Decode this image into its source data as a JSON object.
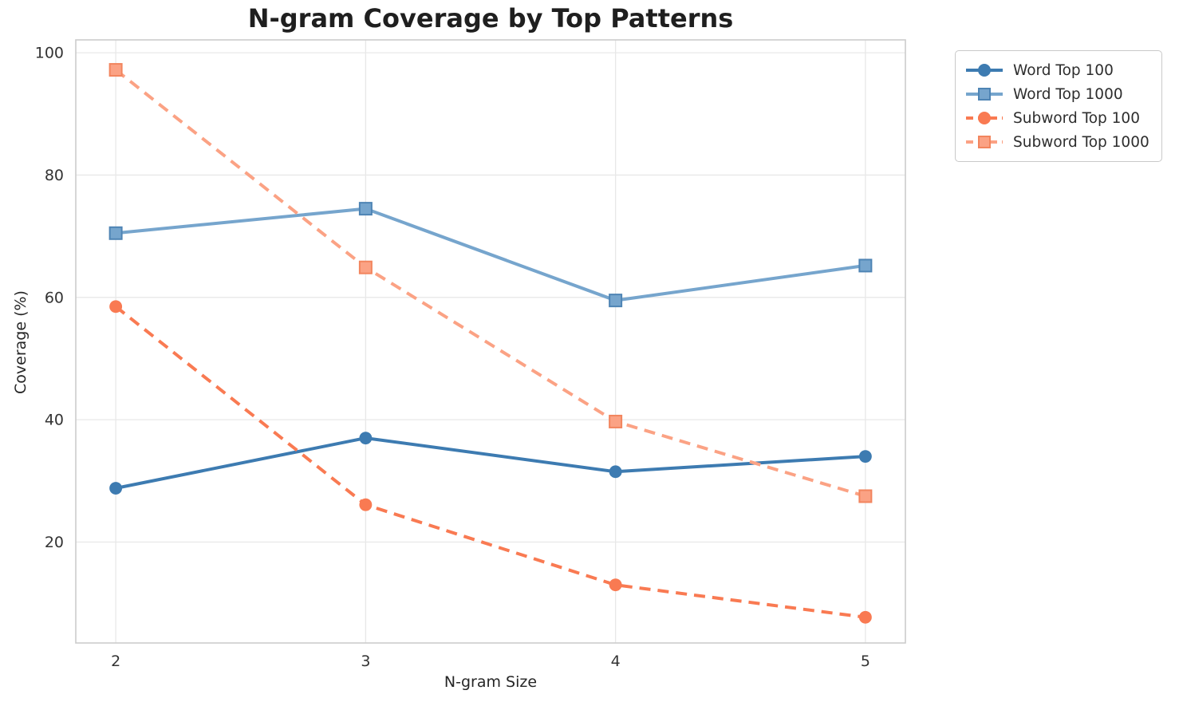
{
  "figure": {
    "title": "N-gram Coverage by Top Patterns",
    "xlabel": "N-gram Size",
    "ylabel": "Coverage (%)"
  },
  "chart_data": {
    "type": "line",
    "title": "N-gram Coverage by Top Patterns",
    "xlabel": "N-gram Size",
    "ylabel": "Coverage (%)",
    "x": [
      2,
      3,
      4,
      5
    ],
    "x_tick_labels": [
      "2",
      "3",
      "4",
      "5"
    ],
    "y_ticks": [
      20,
      40,
      60,
      80,
      100
    ],
    "y_tick_labels": [
      "20",
      "40",
      "60",
      "80",
      "100"
    ],
    "xlim": [
      1.84,
      5.16
    ],
    "ylim": [
      3.5,
      102.1
    ],
    "grid": true,
    "legend_position": "outside-upper-right",
    "series": [
      {
        "name": "Word Top 100",
        "values": [
          28.8,
          37.0,
          31.5,
          34.0
        ],
        "color": "#3d7bb1",
        "marker_edge": "#3d7bb1",
        "line_style": "solid",
        "marker": "circle"
      },
      {
        "name": "Word Top 1000",
        "values": [
          70.5,
          74.5,
          59.5,
          65.2
        ],
        "color": "#76a5cd",
        "marker_edge": "#4e84b4",
        "line_style": "solid",
        "marker": "square"
      },
      {
        "name": "Subword Top 100",
        "values": [
          58.5,
          26.1,
          13.0,
          7.7
        ],
        "color": "#f97a52",
        "marker_edge": "#f97a52",
        "line_style": "dashed",
        "marker": "circle"
      },
      {
        "name": "Subword Top 1000",
        "values": [
          97.2,
          64.9,
          39.7,
          27.5
        ],
        "color": "#fba284",
        "marker_edge": "#f2855e",
        "line_style": "dashed",
        "marker": "square"
      }
    ]
  },
  "style_colors": {
    "grid": "#e8e8e8",
    "frame": "#cccccc",
    "tick_label": "#333333",
    "title_text": "#1f1f1f",
    "axis_label_text": "#262626",
    "legend_border": "#c9c9c9"
  }
}
